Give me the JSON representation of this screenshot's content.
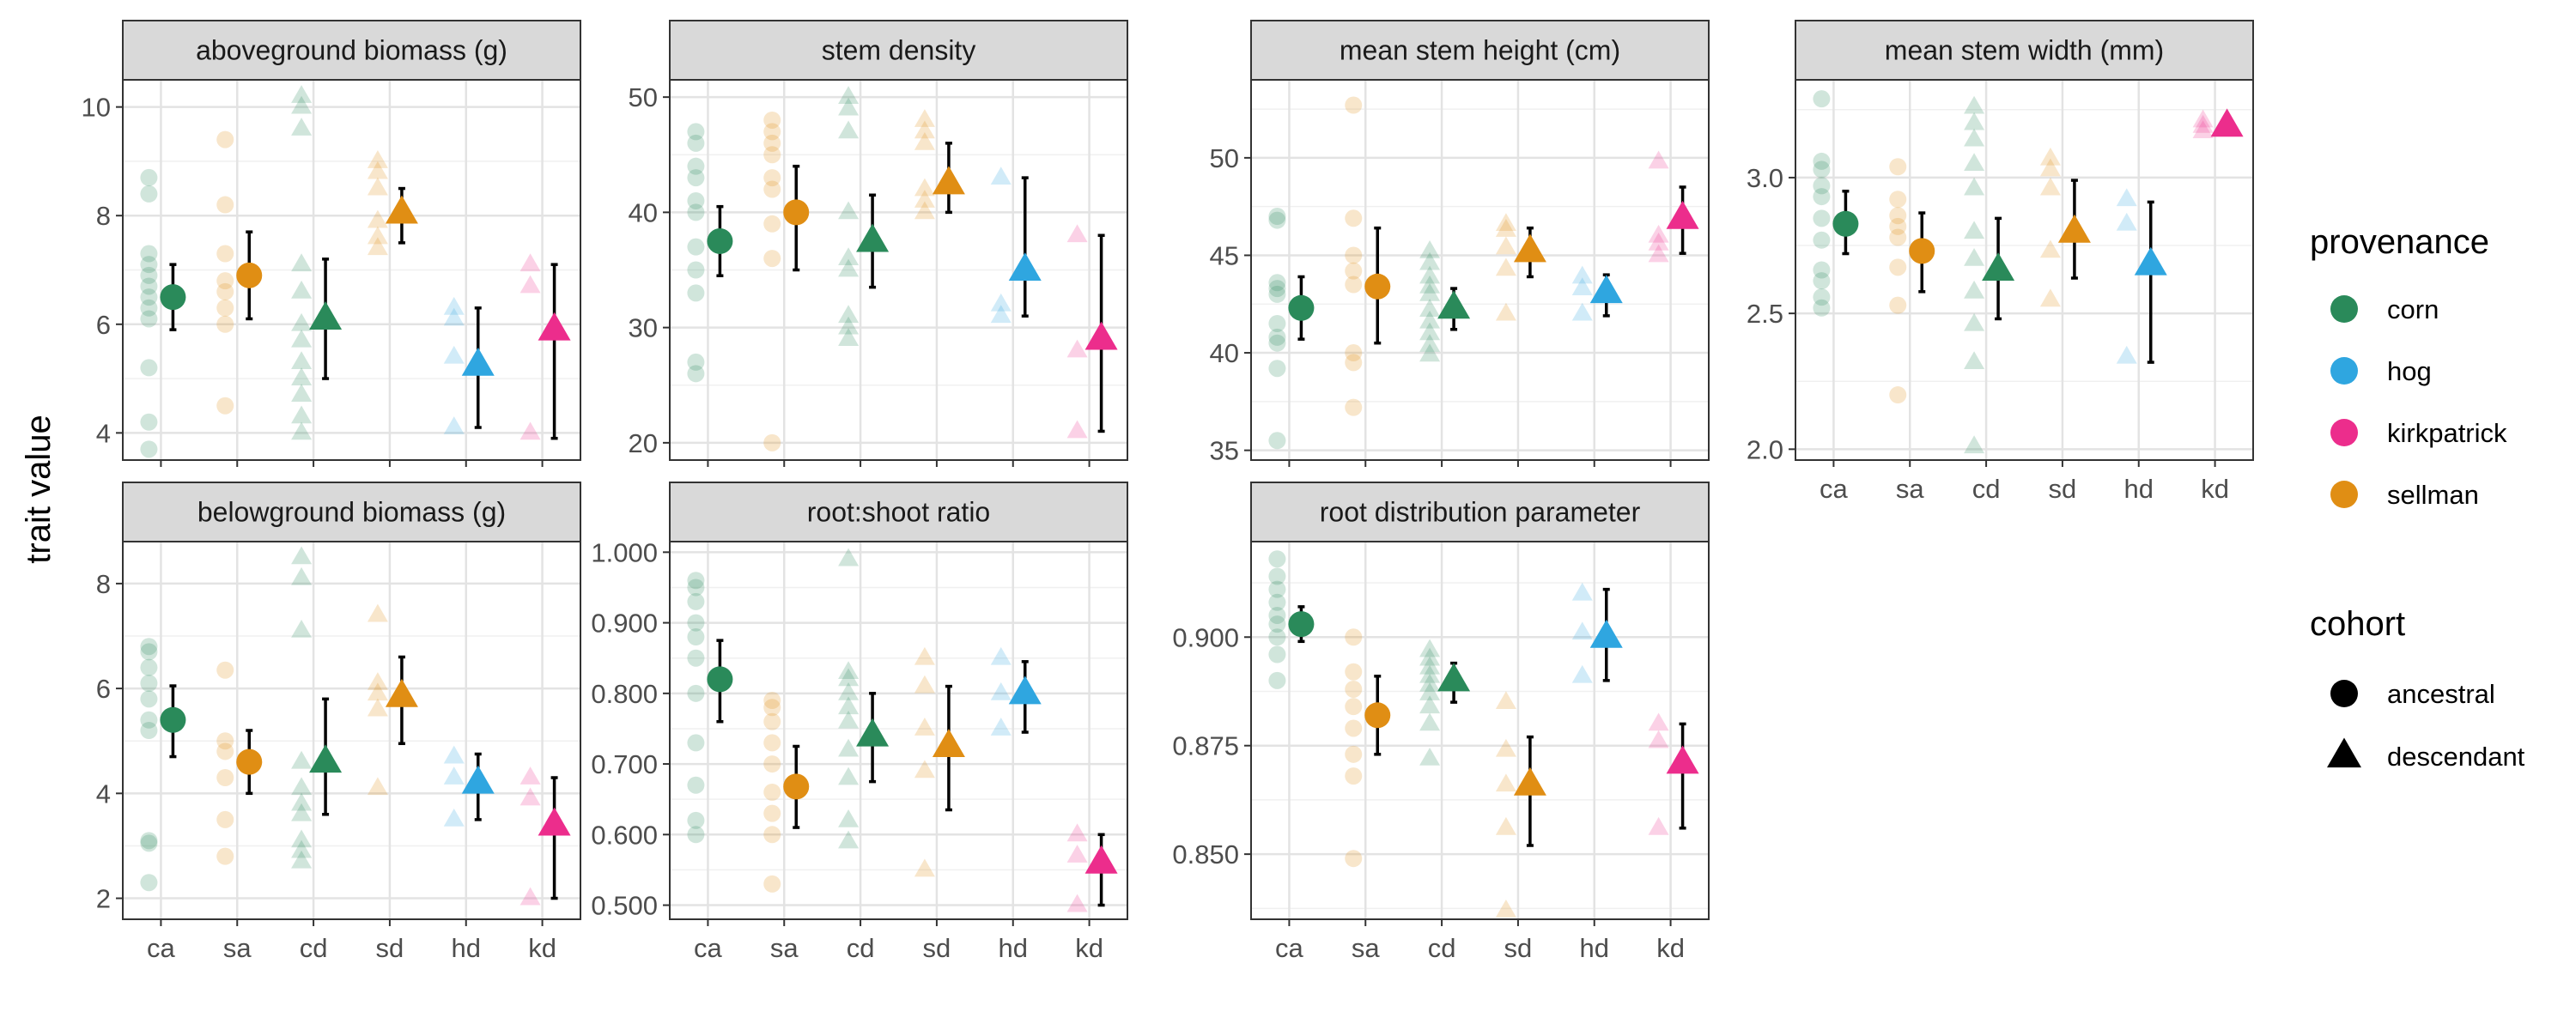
{
  "y_axis_title": "trait value",
  "colors": {
    "corn": "#2a8a5a",
    "hog": "#2fa6e0",
    "kirkpatrick": "#ec2d8c",
    "sellman": "#e08e14"
  },
  "legend": {
    "provenance": {
      "title": "provenance",
      "items": [
        {
          "label": "corn",
          "color": "#2a8a5a"
        },
        {
          "label": "hog",
          "color": "#2fa6e0"
        },
        {
          "label": "kirkpatrick",
          "color": "#ec2d8c"
        },
        {
          "label": "sellman",
          "color": "#e08e14"
        }
      ]
    },
    "cohort": {
      "title": "cohort",
      "items": [
        {
          "label": "ancestral",
          "shape": "circle"
        },
        {
          "label": "descendant",
          "shape": "triangle"
        }
      ]
    }
  },
  "chart_data": [
    {
      "type": "scatter",
      "title": "aboveground biomass (g)",
      "categories": [
        "ca",
        "sa",
        "cd",
        "sd",
        "hd",
        "kd"
      ],
      "ylim": [
        3.5,
        10.5
      ],
      "yticks": [
        4,
        6,
        8,
        10
      ],
      "show_x_tick_labels": false,
      "groups": [
        {
          "cat": "ca",
          "provenance": "corn",
          "cohort": "ancestral",
          "mean": 6.5,
          "lo": 5.9,
          "hi": 7.1,
          "points": [
            3.7,
            4.2,
            5.2,
            6.1,
            6.3,
            6.5,
            6.7,
            6.9,
            7.1,
            7.3,
            8.4,
            8.7
          ]
        },
        {
          "cat": "sa",
          "provenance": "sellman",
          "cohort": "ancestral",
          "mean": 6.9,
          "lo": 6.1,
          "hi": 7.7,
          "points": [
            4.5,
            6.0,
            6.3,
            6.6,
            6.8,
            7.3,
            8.2,
            9.4
          ]
        },
        {
          "cat": "cd",
          "provenance": "corn",
          "cohort": "descendant",
          "mean": 6.1,
          "lo": 5.0,
          "hi": 7.2,
          "points": [
            4.0,
            4.3,
            4.7,
            5.0,
            5.3,
            5.7,
            6.0,
            6.6,
            7.1,
            9.6,
            10.0,
            10.2
          ]
        },
        {
          "cat": "sd",
          "provenance": "sellman",
          "cohort": "descendant",
          "mean": 8.05,
          "lo": 7.5,
          "hi": 8.5,
          "points": [
            7.4,
            7.6,
            7.9,
            8.5,
            8.8,
            9.0
          ]
        },
        {
          "cat": "hd",
          "provenance": "hog",
          "cohort": "descendant",
          "mean": 5.25,
          "lo": 4.1,
          "hi": 6.3,
          "points": [
            4.1,
            5.4,
            6.1,
            6.3
          ]
        },
        {
          "cat": "kd",
          "provenance": "kirkpatrick",
          "cohort": "descendant",
          "mean": 5.9,
          "lo": 3.9,
          "hi": 7.1,
          "points": [
            4.0,
            6.7,
            7.1
          ]
        }
      ]
    },
    {
      "type": "scatter",
      "title": "stem density",
      "categories": [
        "ca",
        "sa",
        "cd",
        "sd",
        "hd",
        "kd"
      ],
      "ylim": [
        18.5,
        51.5
      ],
      "yticks": [
        20,
        30,
        40,
        50
      ],
      "show_x_tick_labels": false,
      "groups": [
        {
          "cat": "ca",
          "provenance": "corn",
          "cohort": "ancestral",
          "mean": 37.5,
          "lo": 34.5,
          "hi": 40.5,
          "points": [
            26,
            27,
            33,
            35,
            37,
            40,
            41,
            43,
            44,
            46,
            47
          ]
        },
        {
          "cat": "sa",
          "provenance": "sellman",
          "cohort": "ancestral",
          "mean": 40.0,
          "lo": 35.0,
          "hi": 44.0,
          "points": [
            20,
            36,
            39,
            42,
            43,
            45,
            46,
            47,
            48
          ]
        },
        {
          "cat": "cd",
          "provenance": "corn",
          "cohort": "descendant",
          "mean": 37.5,
          "lo": 33.5,
          "hi": 41.5,
          "points": [
            29,
            30,
            31,
            35,
            36,
            40,
            47,
            49,
            50
          ]
        },
        {
          "cat": "sd",
          "provenance": "sellman",
          "cohort": "descendant",
          "mean": 42.5,
          "lo": 40.0,
          "hi": 46.0,
          "points": [
            40,
            41,
            42,
            46,
            47,
            48
          ]
        },
        {
          "cat": "hd",
          "provenance": "hog",
          "cohort": "descendant",
          "mean": 35.0,
          "lo": 31.0,
          "hi": 43.0,
          "points": [
            31,
            32,
            43
          ]
        },
        {
          "cat": "kd",
          "provenance": "kirkpatrick",
          "cohort": "descendant",
          "mean": 29.0,
          "lo": 21.0,
          "hi": 38.0,
          "points": [
            21,
            28,
            38
          ]
        }
      ]
    },
    {
      "type": "scatter",
      "title": "mean stem height (cm)",
      "categories": [
        "ca",
        "sa",
        "cd",
        "sd",
        "hd",
        "kd"
      ],
      "ylim": [
        34.5,
        54.0
      ],
      "yticks": [
        35,
        40,
        45,
        50
      ],
      "show_x_tick_labels": false,
      "groups": [
        {
          "cat": "ca",
          "provenance": "corn",
          "cohort": "ancestral",
          "mean": 42.3,
          "lo": 40.7,
          "hi": 43.9,
          "points": [
            35.5,
            39.2,
            40.5,
            40.8,
            41.5,
            43.0,
            43.3,
            43.6,
            46.8,
            47.0
          ]
        },
        {
          "cat": "sa",
          "provenance": "sellman",
          "cohort": "ancestral",
          "mean": 43.4,
          "lo": 40.5,
          "hi": 46.4,
          "points": [
            37.2,
            39.5,
            40.0,
            43.5,
            44.2,
            45.0,
            46.9,
            52.7
          ]
        },
        {
          "cat": "cd",
          "provenance": "corn",
          "cohort": "descendant",
          "mean": 42.3,
          "lo": 41.2,
          "hi": 43.3,
          "points": [
            39.9,
            40.4,
            41.0,
            41.6,
            42.2,
            43.0,
            43.4,
            43.9,
            44.6,
            45.2
          ]
        },
        {
          "cat": "sd",
          "provenance": "sellman",
          "cohort": "descendant",
          "mean": 45.2,
          "lo": 43.9,
          "hi": 46.4,
          "points": [
            42.0,
            44.3,
            45.4,
            46.3,
            46.6
          ]
        },
        {
          "cat": "hd",
          "provenance": "hog",
          "cohort": "descendant",
          "mean": 43.1,
          "lo": 41.9,
          "hi": 44.0,
          "points": [
            42.0,
            43.3,
            43.9
          ]
        },
        {
          "cat": "kd",
          "provenance": "kirkpatrick",
          "cohort": "descendant",
          "mean": 46.9,
          "lo": 45.1,
          "hi": 48.5,
          "points": [
            45.0,
            45.6,
            46.0,
            49.8
          ]
        }
      ]
    },
    {
      "type": "scatter",
      "title": "mean stem width (mm)",
      "categories": [
        "ca",
        "sa",
        "cd",
        "sd",
        "hd",
        "kd"
      ],
      "ylim": [
        1.96,
        3.36
      ],
      "yticks": [
        2.0,
        2.5,
        3.0
      ],
      "show_x_tick_labels": true,
      "groups": [
        {
          "cat": "ca",
          "provenance": "corn",
          "cohort": "ancestral",
          "mean": 2.83,
          "lo": 2.72,
          "hi": 2.95,
          "points": [
            2.52,
            2.56,
            2.62,
            2.66,
            2.77,
            2.85,
            2.93,
            2.97,
            3.03,
            3.06,
            3.29
          ]
        },
        {
          "cat": "sa",
          "provenance": "sellman",
          "cohort": "ancestral",
          "mean": 2.73,
          "lo": 2.58,
          "hi": 2.87,
          "points": [
            2.2,
            2.53,
            2.67,
            2.78,
            2.82,
            2.86,
            2.92,
            3.04
          ]
        },
        {
          "cat": "cd",
          "provenance": "corn",
          "cohort": "descendant",
          "mean": 2.66,
          "lo": 2.48,
          "hi": 2.85,
          "points": [
            2.01,
            2.32,
            2.46,
            2.58,
            2.7,
            2.8,
            2.96,
            3.05,
            3.14,
            3.2,
            3.26
          ]
        },
        {
          "cat": "sd",
          "provenance": "sellman",
          "cohort": "descendant",
          "mean": 2.8,
          "lo": 2.63,
          "hi": 2.99,
          "points": [
            2.55,
            2.73,
            2.96,
            3.03,
            3.07
          ]
        },
        {
          "cat": "hd",
          "provenance": "hog",
          "cohort": "descendant",
          "mean": 2.68,
          "lo": 2.32,
          "hi": 2.91,
          "points": [
            2.34,
            2.83,
            2.92
          ]
        },
        {
          "cat": "kd",
          "provenance": "kirkpatrick",
          "cohort": "descendant",
          "mean": 3.19,
          "lo": 3.19,
          "hi": 3.19,
          "points": [
            3.17,
            3.19,
            3.21
          ]
        }
      ]
    },
    {
      "type": "scatter",
      "title": "belowground biomass (g)",
      "categories": [
        "ca",
        "sa",
        "cd",
        "sd",
        "hd",
        "kd"
      ],
      "ylim": [
        1.6,
        8.8
      ],
      "yticks": [
        2,
        4,
        6,
        8
      ],
      "show_x_tick_labels": true,
      "groups": [
        {
          "cat": "ca",
          "provenance": "corn",
          "cohort": "ancestral",
          "mean": 5.4,
          "lo": 4.7,
          "hi": 6.05,
          "points": [
            2.3,
            3.05,
            3.1,
            5.2,
            5.4,
            5.8,
            6.1,
            6.4,
            6.7,
            6.8
          ]
        },
        {
          "cat": "sa",
          "provenance": "sellman",
          "cohort": "ancestral",
          "mean": 4.6,
          "lo": 4.0,
          "hi": 5.2,
          "points": [
            2.8,
            3.5,
            4.3,
            4.8,
            5.0,
            6.35
          ]
        },
        {
          "cat": "cd",
          "provenance": "corn",
          "cohort": "descendant",
          "mean": 4.6,
          "lo": 3.6,
          "hi": 5.8,
          "points": [
            2.7,
            2.9,
            3.1,
            3.6,
            3.8,
            4.1,
            4.6,
            7.1,
            8.1,
            8.5
          ]
        },
        {
          "cat": "sd",
          "provenance": "sellman",
          "cohort": "descendant",
          "mean": 5.85,
          "lo": 4.95,
          "hi": 6.6,
          "points": [
            4.1,
            5.6,
            5.9,
            6.1,
            7.4
          ]
        },
        {
          "cat": "hd",
          "provenance": "hog",
          "cohort": "descendant",
          "mean": 4.2,
          "lo": 3.5,
          "hi": 4.75,
          "points": [
            3.5,
            4.3,
            4.7
          ]
        },
        {
          "cat": "kd",
          "provenance": "kirkpatrick",
          "cohort": "descendant",
          "mean": 3.4,
          "lo": 2.0,
          "hi": 4.3,
          "points": [
            2.0,
            3.9,
            4.3
          ]
        }
      ]
    },
    {
      "type": "scatter",
      "title": "root:shoot ratio",
      "categories": [
        "ca",
        "sa",
        "cd",
        "sd",
        "hd",
        "kd"
      ],
      "ylim": [
        0.48,
        1.015
      ],
      "yticks": [
        0.5,
        0.6,
        0.7,
        0.8,
        0.9,
        1.0
      ],
      "show_x_tick_labels": true,
      "groups": [
        {
          "cat": "ca",
          "provenance": "corn",
          "cohort": "ancestral",
          "mean": 0.82,
          "lo": 0.76,
          "hi": 0.875,
          "points": [
            0.6,
            0.62,
            0.67,
            0.73,
            0.8,
            0.85,
            0.88,
            0.9,
            0.93,
            0.95,
            0.96
          ]
        },
        {
          "cat": "sa",
          "provenance": "sellman",
          "cohort": "ancestral",
          "mean": 0.668,
          "lo": 0.61,
          "hi": 0.725,
          "points": [
            0.53,
            0.6,
            0.63,
            0.66,
            0.7,
            0.73,
            0.76,
            0.78,
            0.79
          ]
        },
        {
          "cat": "cd",
          "provenance": "corn",
          "cohort": "descendant",
          "mean": 0.74,
          "lo": 0.675,
          "hi": 0.8,
          "points": [
            0.59,
            0.62,
            0.68,
            0.72,
            0.76,
            0.78,
            0.8,
            0.82,
            0.83,
            0.99
          ]
        },
        {
          "cat": "sd",
          "provenance": "sellman",
          "cohort": "descendant",
          "mean": 0.725,
          "lo": 0.635,
          "hi": 0.81,
          "points": [
            0.55,
            0.69,
            0.75,
            0.81,
            0.85
          ]
        },
        {
          "cat": "hd",
          "provenance": "hog",
          "cohort": "descendant",
          "mean": 0.8,
          "lo": 0.745,
          "hi": 0.845,
          "points": [
            0.75,
            0.8,
            0.85
          ]
        },
        {
          "cat": "kd",
          "provenance": "kirkpatrick",
          "cohort": "descendant",
          "mean": 0.56,
          "lo": 0.5,
          "hi": 0.6,
          "points": [
            0.5,
            0.57,
            0.6
          ]
        }
      ]
    },
    {
      "type": "scatter",
      "title": "root distribution parameter",
      "categories": [
        "ca",
        "sa",
        "cd",
        "sd",
        "hd",
        "kd"
      ],
      "ylim": [
        0.835,
        0.922
      ],
      "yticks": [
        0.85,
        0.875,
        0.9
      ],
      "show_x_tick_labels": true,
      "groups": [
        {
          "cat": "ca",
          "provenance": "corn",
          "cohort": "ancestral",
          "mean": 0.903,
          "lo": 0.899,
          "hi": 0.907,
          "points": [
            0.89,
            0.896,
            0.9,
            0.903,
            0.905,
            0.908,
            0.911,
            0.914,
            0.918
          ]
        },
        {
          "cat": "sa",
          "provenance": "sellman",
          "cohort": "ancestral",
          "mean": 0.882,
          "lo": 0.873,
          "hi": 0.891,
          "points": [
            0.849,
            0.868,
            0.873,
            0.879,
            0.884,
            0.888,
            0.892,
            0.9
          ]
        },
        {
          "cat": "cd",
          "provenance": "corn",
          "cohort": "descendant",
          "mean": 0.89,
          "lo": 0.885,
          "hi": 0.894,
          "points": [
            0.872,
            0.88,
            0.884,
            0.887,
            0.889,
            0.891,
            0.893,
            0.895,
            0.897
          ]
        },
        {
          "cat": "sd",
          "provenance": "sellman",
          "cohort": "descendant",
          "mean": 0.866,
          "lo": 0.852,
          "hi": 0.877,
          "points": [
            0.837,
            0.856,
            0.866,
            0.874,
            0.885
          ]
        },
        {
          "cat": "hd",
          "provenance": "hog",
          "cohort": "descendant",
          "mean": 0.9,
          "lo": 0.89,
          "hi": 0.911,
          "points": [
            0.891,
            0.901,
            0.91
          ]
        },
        {
          "cat": "kd",
          "provenance": "kirkpatrick",
          "cohort": "descendant",
          "mean": 0.871,
          "lo": 0.856,
          "hi": 0.88,
          "points": [
            0.856,
            0.876,
            0.88
          ]
        }
      ]
    }
  ]
}
